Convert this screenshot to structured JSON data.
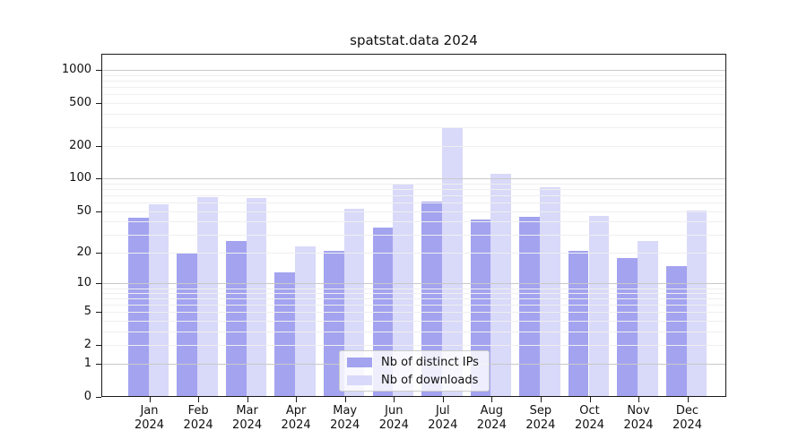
{
  "title": "spatstat.data 2024",
  "legend": {
    "items": [
      {
        "label": "Nb of distinct IPs"
      },
      {
        "label": "Nb of downloads"
      }
    ]
  },
  "y_axis": {
    "tick_labels": [
      "0",
      "1",
      "2",
      "5",
      "10",
      "20",
      "50",
      "100",
      "200",
      "500",
      "1000"
    ]
  },
  "x_axis": {
    "year": "2024"
  },
  "colors": {
    "bar_dark": "#a3a3f0",
    "bar_light": "#d9d9f9",
    "grid_major": "#c9c9c9",
    "grid_minor": "#efefef",
    "spine": "#1a1a1a"
  },
  "chart_data": {
    "type": "bar",
    "title": "spatstat.data 2024",
    "categories": [
      "Jan 2024",
      "Feb 2024",
      "Mar 2024",
      "Apr 2024",
      "May 2024",
      "Jun 2024",
      "Jul 2024",
      "Aug 2024",
      "Sep 2024",
      "Oct 2024",
      "Nov 2024",
      "Dec 2024"
    ],
    "series": [
      {
        "name": "Nb of distinct IPs",
        "color": "#a3a3f0",
        "values": [
          43,
          20,
          26,
          13,
          21,
          35,
          61,
          42,
          44,
          21,
          18,
          15
        ]
      },
      {
        "name": "Nb of downloads",
        "color": "#d9d9f9",
        "values": [
          58,
          68,
          66,
          23,
          52,
          88,
          300,
          110,
          84,
          45,
          26,
          51
        ]
      }
    ],
    "xlabel": "",
    "ylabel": "",
    "yscale": "log1p",
    "yticks": [
      0,
      1,
      2,
      5,
      10,
      20,
      50,
      100,
      200,
      500,
      1000
    ],
    "ylim": [
      0,
      1400
    ],
    "grid": {
      "on": true,
      "drawn_over_bars": true,
      "major": [
        1,
        10,
        100,
        1000
      ],
      "minor": [
        2,
        3,
        4,
        5,
        6,
        7,
        8,
        9,
        20,
        30,
        40,
        50,
        60,
        70,
        80,
        90,
        200,
        300,
        400,
        500,
        600,
        700,
        800,
        900
      ]
    },
    "legend_position": "inside-bottom-center"
  }
}
